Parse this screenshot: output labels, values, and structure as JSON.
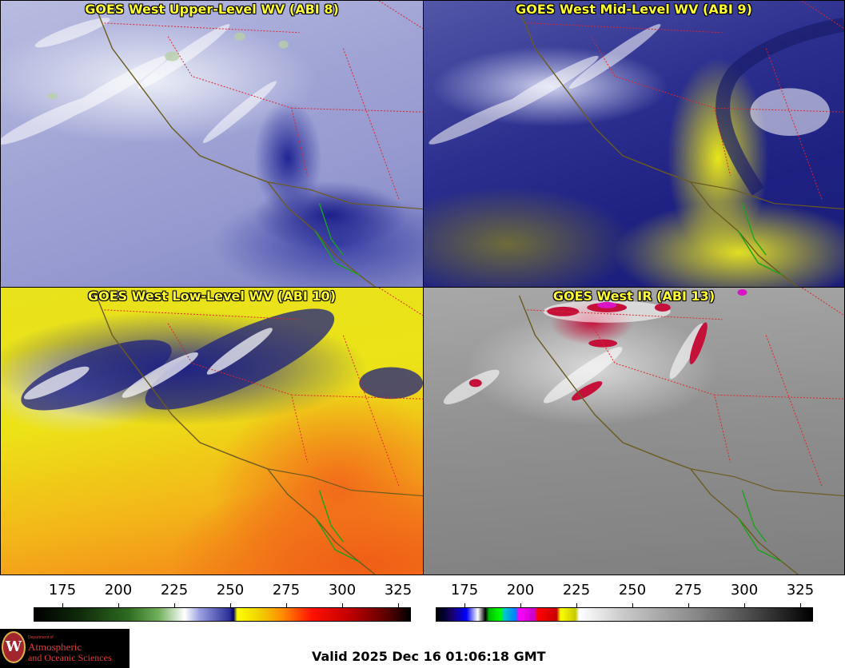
{
  "panels": [
    {
      "title": "GOES West Upper-Level WV (ABI 8)"
    },
    {
      "title": "GOES West Mid-Level WV (ABI 9)"
    },
    {
      "title": "GOES West Low-Level WV (ABI 10)"
    },
    {
      "title": "GOES West IR (ABI 13)"
    }
  ],
  "colorbars": [
    {
      "name": "water-vapor-colorbar",
      "ticks": [
        "175",
        "200",
        "225",
        "250",
        "275",
        "300",
        "325"
      ],
      "colors": [
        "#000000",
        "#0f2a0a",
        "#2e6b20",
        "#6fb05a",
        "#ffffff",
        "#2b2e97",
        "#ffff00",
        "#ff8c00",
        "#ff0000",
        "#7a0000",
        "#000000"
      ]
    },
    {
      "name": "infrared-colorbar",
      "ticks": [
        "175",
        "200",
        "225",
        "250",
        "275",
        "300",
        "325"
      ]
    }
  ],
  "logo": {
    "department_of": "Department of",
    "line1": "Atmospheric",
    "line2": "and Oceanic Sciences",
    "seal_letter": "W"
  },
  "valid_time": "Valid 2025 Dec 16 01:06:18 GMT"
}
